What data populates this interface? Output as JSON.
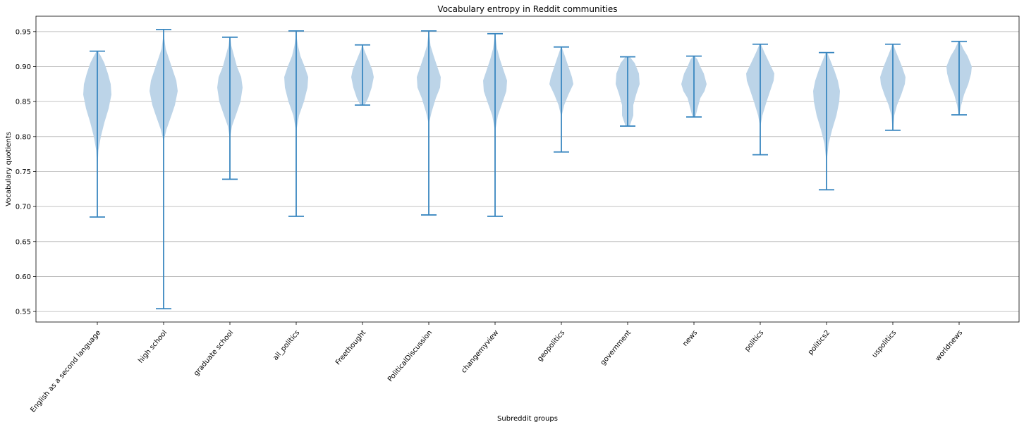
{
  "chart_data": {
    "type": "violin",
    "title": "Vocabulary entropy in Reddit communities",
    "xlabel": "Subreddit groups",
    "ylabel": "Vocabulary quotients",
    "ylim": [
      0.535,
      0.972
    ],
    "yticks": [
      0.55,
      0.6,
      0.65,
      0.7,
      0.75,
      0.8,
      0.85,
      0.9,
      0.95
    ],
    "grid": "horizontal",
    "colors": {
      "body": "#bcd4e8",
      "line": "#3a87c0"
    },
    "categories": [
      "English as a second language",
      "high school",
      "graduate school",
      "all_politics",
      "Freethought",
      "PoliticalDiscussion",
      "changemyview",
      "geopolitics",
      "government",
      "news",
      "politics",
      "politics2",
      "uspolitics",
      "worldnews"
    ],
    "series": [
      {
        "category": "English as a second language",
        "min": 0.685,
        "max": 0.922,
        "profile": [
          [
            0.755,
            0.3
          ],
          [
            0.78,
            1.5
          ],
          [
            0.8,
            5
          ],
          [
            0.82,
            10
          ],
          [
            0.84,
            16
          ],
          [
            0.86,
            20
          ],
          [
            0.875,
            19
          ],
          [
            0.89,
            15
          ],
          [
            0.905,
            10
          ],
          [
            0.915,
            5
          ],
          [
            0.922,
            1
          ]
        ]
      },
      {
        "category": "high school",
        "min": 0.554,
        "max": 0.953,
        "profile": [
          [
            0.795,
            0.5
          ],
          [
            0.81,
            4
          ],
          [
            0.83,
            11
          ],
          [
            0.845,
            16
          ],
          [
            0.865,
            20
          ],
          [
            0.88,
            18
          ],
          [
            0.895,
            13
          ],
          [
            0.91,
            8
          ],
          [
            0.925,
            3
          ],
          [
            0.94,
            1
          ],
          [
            0.953,
            0.3
          ]
        ]
      },
      {
        "category": "graduate school",
        "min": 0.739,
        "max": 0.942,
        "profile": [
          [
            0.8,
            0.5
          ],
          [
            0.815,
            3
          ],
          [
            0.835,
            10
          ],
          [
            0.85,
            15
          ],
          [
            0.87,
            18
          ],
          [
            0.885,
            16
          ],
          [
            0.9,
            10
          ],
          [
            0.915,
            6
          ],
          [
            0.93,
            2
          ],
          [
            0.942,
            0.5
          ]
        ]
      },
      {
        "category": "all_politics",
        "min": 0.686,
        "max": 0.951,
        "profile": [
          [
            0.81,
            0.5
          ],
          [
            0.83,
            4
          ],
          [
            0.85,
            11
          ],
          [
            0.87,
            16
          ],
          [
            0.885,
            17
          ],
          [
            0.9,
            12
          ],
          [
            0.915,
            6
          ],
          [
            0.93,
            2.5
          ],
          [
            0.94,
            1
          ],
          [
            0.951,
            0.4
          ]
        ]
      },
      {
        "category": "Freethought",
        "min": 0.845,
        "max": 0.931,
        "profile": [
          [
            0.845,
            3
          ],
          [
            0.855,
            8
          ],
          [
            0.87,
            13
          ],
          [
            0.885,
            16
          ],
          [
            0.895,
            14
          ],
          [
            0.905,
            10
          ],
          [
            0.915,
            6
          ],
          [
            0.925,
            2
          ],
          [
            0.931,
            0.5
          ]
        ]
      },
      {
        "category": "PoliticalDiscussion",
        "min": 0.688,
        "max": 0.951,
        "profile": [
          [
            0.82,
            0.5
          ],
          [
            0.835,
            4
          ],
          [
            0.855,
            10
          ],
          [
            0.87,
            16
          ],
          [
            0.885,
            17
          ],
          [
            0.9,
            12
          ],
          [
            0.915,
            7
          ],
          [
            0.93,
            2.5
          ],
          [
            0.945,
            0.8
          ],
          [
            0.951,
            0.3
          ]
        ]
      },
      {
        "category": "changemyview",
        "min": 0.686,
        "max": 0.947,
        "profile": [
          [
            0.81,
            0.5
          ],
          [
            0.83,
            4
          ],
          [
            0.85,
            11
          ],
          [
            0.865,
            16
          ],
          [
            0.88,
            17
          ],
          [
            0.895,
            12
          ],
          [
            0.91,
            7
          ],
          [
            0.925,
            3
          ],
          [
            0.94,
            1
          ],
          [
            0.947,
            0.3
          ]
        ]
      },
      {
        "category": "geopolitics",
        "min": 0.778,
        "max": 0.928,
        "profile": [
          [
            0.83,
            0.5
          ],
          [
            0.845,
            4
          ],
          [
            0.86,
            10
          ],
          [
            0.875,
            17
          ],
          [
            0.885,
            15
          ],
          [
            0.9,
            10
          ],
          [
            0.915,
            5
          ],
          [
            0.928,
            0.5
          ]
        ]
      },
      {
        "category": "government",
        "min": 0.815,
        "max": 0.914,
        "profile": [
          [
            0.815,
            3
          ],
          [
            0.83,
            8
          ],
          [
            0.845,
            8
          ],
          [
            0.86,
            12
          ],
          [
            0.875,
            17
          ],
          [
            0.89,
            16
          ],
          [
            0.905,
            10
          ],
          [
            0.914,
            3
          ]
        ]
      },
      {
        "category": "news",
        "min": 0.828,
        "max": 0.915,
        "profile": [
          [
            0.828,
            2
          ],
          [
            0.84,
            5
          ],
          [
            0.855,
            9
          ],
          [
            0.865,
            15
          ],
          [
            0.875,
            18
          ],
          [
            0.89,
            14
          ],
          [
            0.9,
            9
          ],
          [
            0.91,
            5
          ],
          [
            0.915,
            1
          ]
        ]
      },
      {
        "category": "politics",
        "min": 0.774,
        "max": 0.932,
        "profile": [
          [
            0.815,
            0.3
          ],
          [
            0.83,
            3
          ],
          [
            0.85,
            9
          ],
          [
            0.865,
            14
          ],
          [
            0.88,
            19
          ],
          [
            0.89,
            20
          ],
          [
            0.905,
            13
          ],
          [
            0.92,
            6
          ],
          [
            0.932,
            1
          ]
        ]
      },
      {
        "category": "politics2",
        "min": 0.724,
        "max": 0.92,
        "profile": [
          [
            0.765,
            0.3
          ],
          [
            0.79,
            3
          ],
          [
            0.81,
            8
          ],
          [
            0.83,
            14
          ],
          [
            0.85,
            18
          ],
          [
            0.865,
            19
          ],
          [
            0.88,
            16
          ],
          [
            0.895,
            11
          ],
          [
            0.91,
            5
          ],
          [
            0.92,
            1
          ]
        ]
      },
      {
        "category": "uspolitics",
        "min": 0.809,
        "max": 0.932,
        "profile": [
          [
            0.809,
            0.3
          ],
          [
            0.83,
            2
          ],
          [
            0.845,
            6
          ],
          [
            0.86,
            12
          ],
          [
            0.875,
            17
          ],
          [
            0.885,
            18
          ],
          [
            0.9,
            13
          ],
          [
            0.915,
            7
          ],
          [
            0.925,
            3
          ],
          [
            0.932,
            0.8
          ]
        ]
      },
      {
        "category": "worldnews",
        "min": 0.831,
        "max": 0.936,
        "profile": [
          [
            0.831,
            0.5
          ],
          [
            0.845,
            3
          ],
          [
            0.86,
            7
          ],
          [
            0.875,
            13
          ],
          [
            0.89,
            17
          ],
          [
            0.9,
            18
          ],
          [
            0.915,
            12
          ],
          [
            0.925,
            6
          ],
          [
            0.936,
            1
          ]
        ]
      }
    ]
  }
}
